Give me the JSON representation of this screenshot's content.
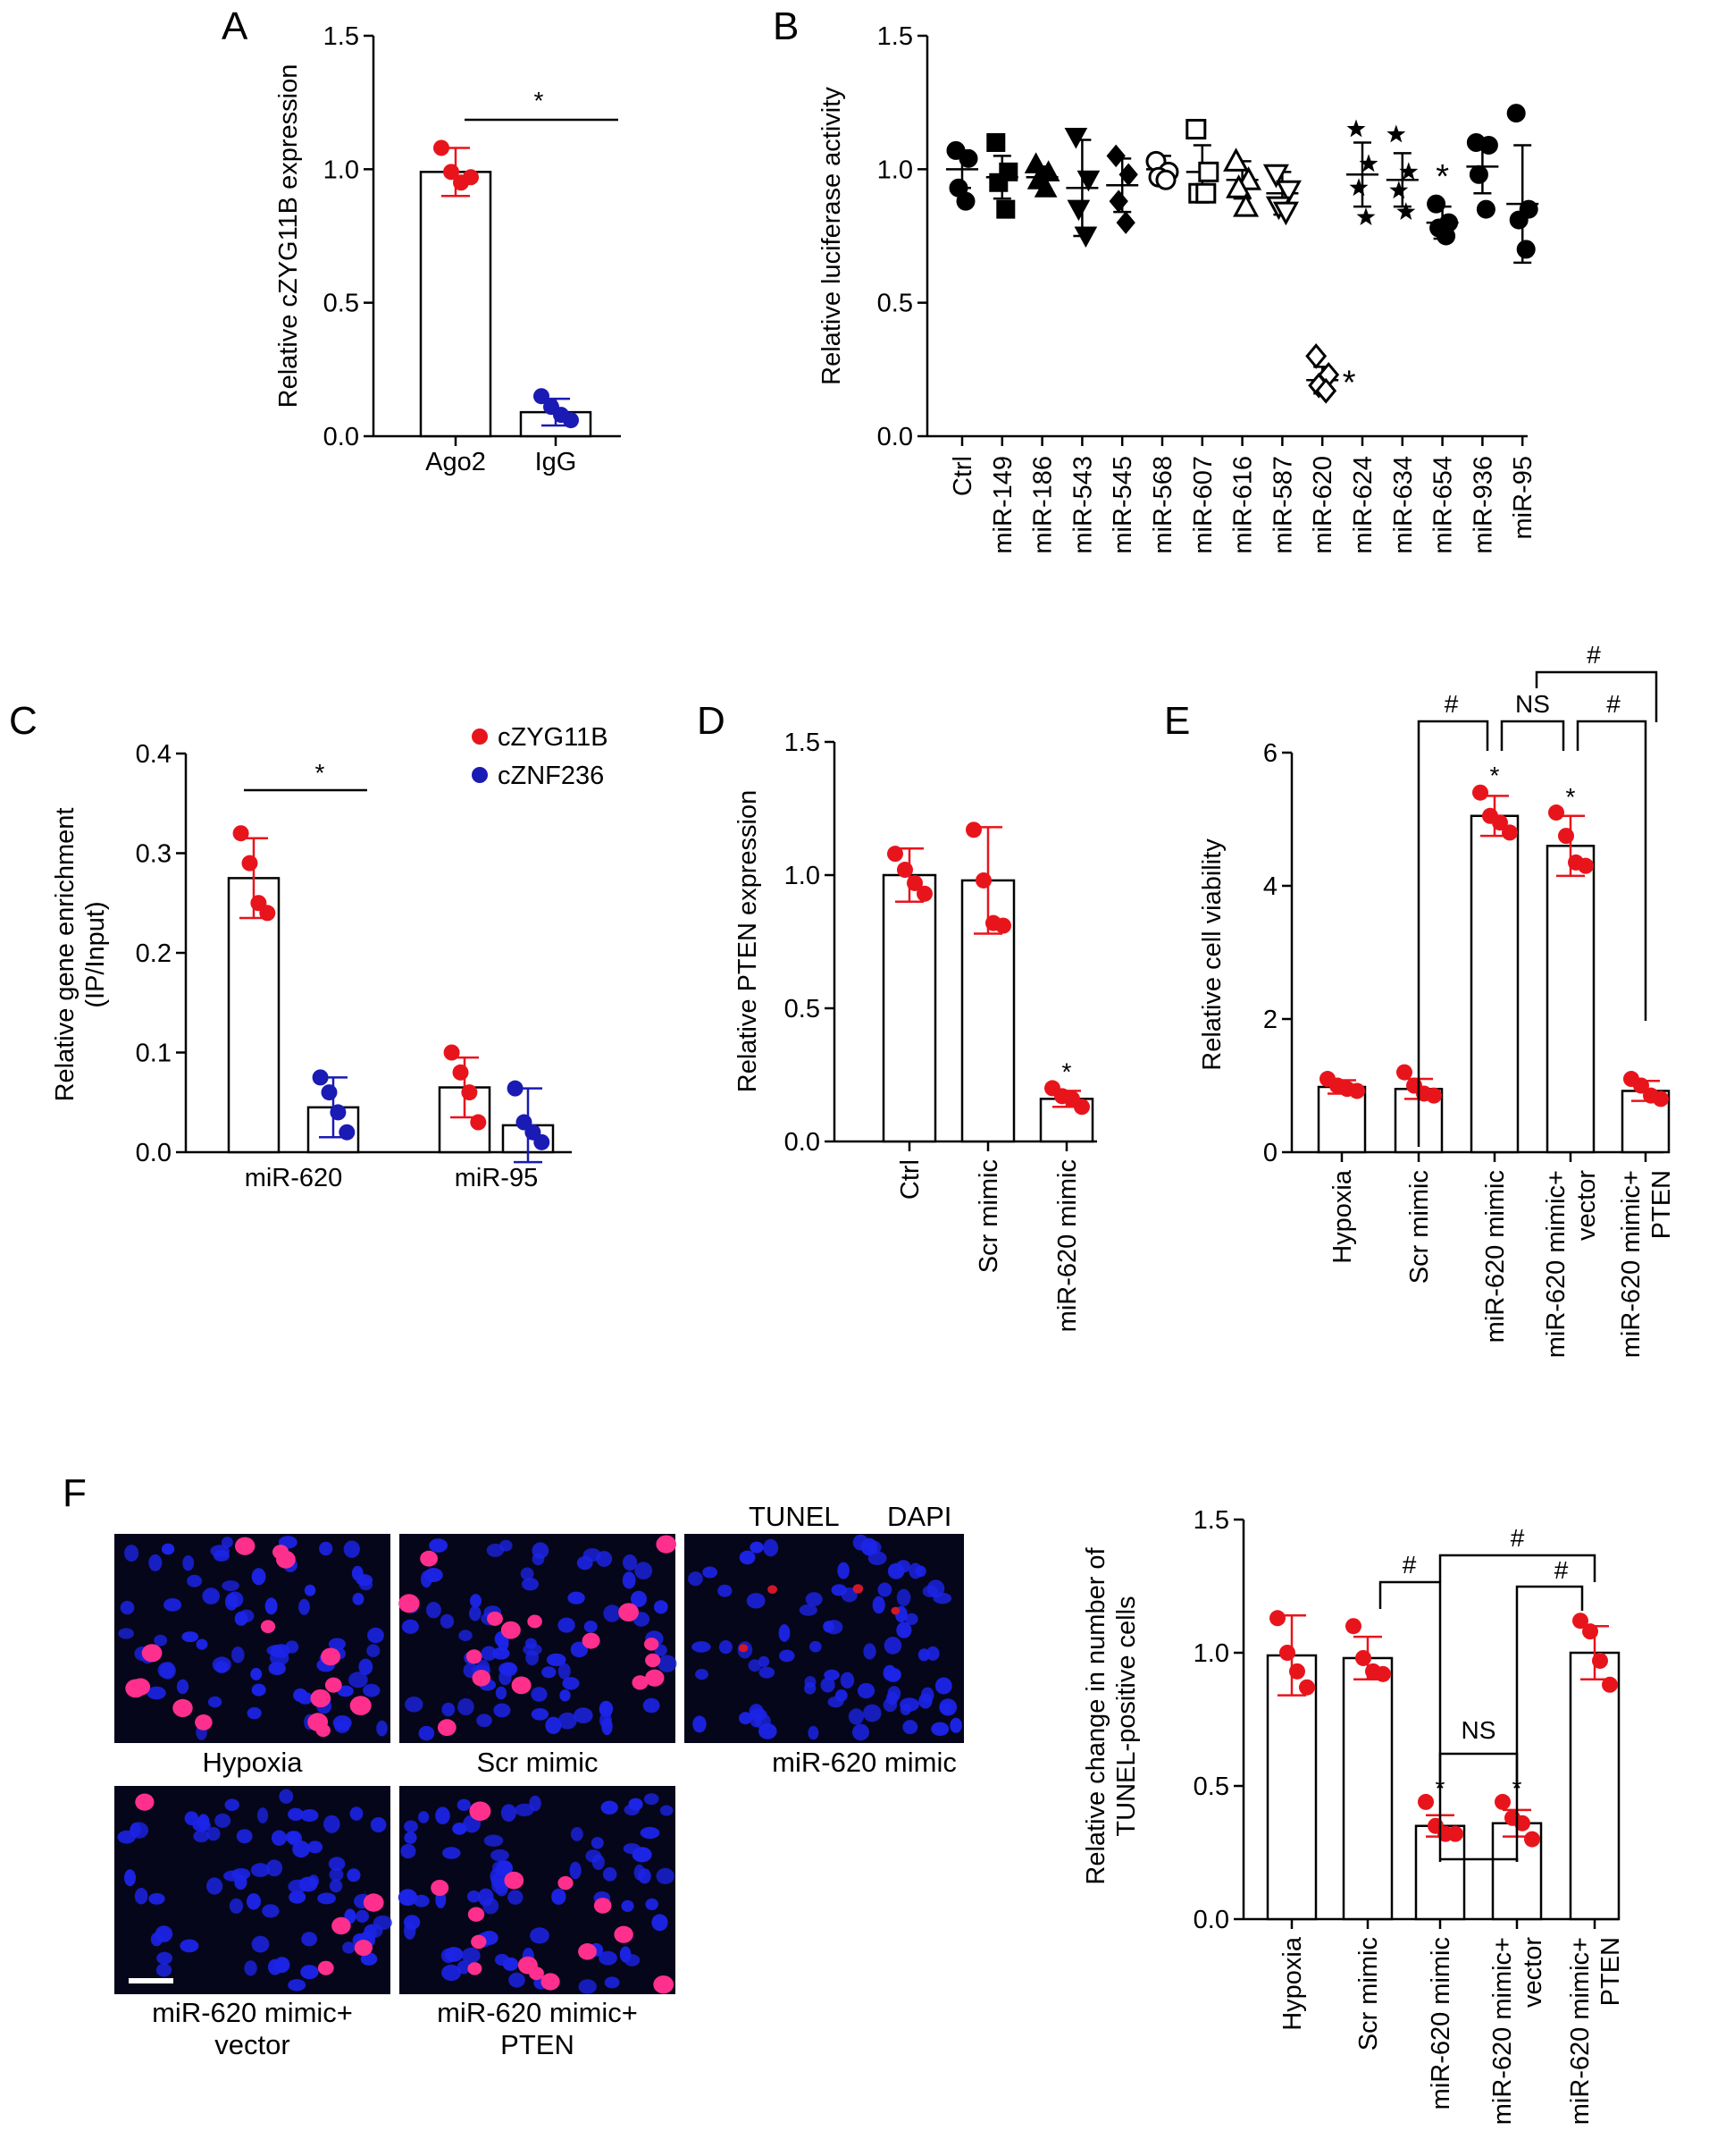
{
  "panel_labels": [
    "A",
    "B",
    "C",
    "D",
    "E",
    "F"
  ],
  "colors": {
    "red": "#e8141c",
    "blue": "#1a1ab4",
    "black": "#000000"
  },
  "chart_data": [
    {
      "id": "A",
      "type": "bar",
      "ylabel": "Relative cZYG11B expression",
      "ylim": [
        0,
        1.5
      ],
      "yticks": [
        "0.0",
        "0.5",
        "1.0",
        "1.5"
      ],
      "categories": [
        "Ago2",
        "IgG"
      ],
      "values": [
        0.99,
        0.09
      ],
      "errors": [
        0.09,
        0.05
      ],
      "point_colors": [
        "#e8141c",
        "#1a1ab4"
      ],
      "points": [
        [
          1.08,
          0.99,
          0.95,
          0.97
        ],
        [
          0.15,
          0.11,
          0.08,
          0.06
        ]
      ],
      "annotations": {
        "sig": "*"
      }
    },
    {
      "id": "B",
      "type": "scatter",
      "ylabel": "Relative luciferase activity",
      "ylim": [
        0,
        1.5
      ],
      "yticks": [
        "0.0",
        "0.5",
        "1.0",
        "1.5"
      ],
      "categories": [
        "Ctrl",
        "miR-149",
        "miR-186",
        "miR-543",
        "miR-545",
        "miR-568",
        "miR-607",
        "miR-616",
        "miR-587",
        "miR-620",
        "miR-624",
        "miR-634",
        "miR-654",
        "miR-936",
        "miR-95"
      ],
      "means": [
        1.0,
        0.97,
        0.97,
        0.93,
        0.94,
        1.0,
        0.99,
        0.96,
        0.91,
        0.21,
        0.98,
        0.96,
        0.8,
        1.01,
        0.87
      ],
      "errors": [
        0.07,
        0.08,
        0.04,
        0.18,
        0.1,
        0.05,
        0.1,
        0.07,
        0.08,
        0.05,
        0.12,
        0.1,
        0.06,
        0.1,
        0.22
      ],
      "markers": [
        "circle",
        "square",
        "triangle",
        "triangle-down",
        "diamond",
        "open-circle",
        "open-square",
        "open-triangle",
        "open-triangle-down",
        "open-diamond",
        "star",
        "star",
        "circle",
        "circle",
        "circle"
      ],
      "points": [
        [
          1.07,
          1.04,
          0.93,
          0.88
        ],
        [
          1.1,
          0.99,
          0.95,
          0.85
        ],
        [
          1.02,
          0.99,
          0.96,
          0.93
        ],
        [
          1.12,
          0.96,
          0.85,
          0.75
        ],
        [
          1.05,
          0.98,
          0.88,
          0.8
        ],
        [
          1.03,
          0.99,
          0.97,
          0.96
        ],
        [
          1.15,
          0.99,
          0.91,
          0.91
        ],
        [
          1.03,
          0.96,
          0.93,
          0.86
        ],
        [
          0.98,
          0.92,
          0.86,
          0.84
        ],
        [
          0.3,
          0.23,
          0.19,
          0.17
        ],
        [
          1.15,
          1.02,
          0.93,
          0.82
        ],
        [
          1.13,
          0.99,
          0.92,
          0.84
        ],
        [
          0.87,
          0.8,
          0.78,
          0.75
        ],
        [
          1.1,
          1.09,
          0.98,
          0.85
        ],
        [
          1.21,
          0.85,
          0.81,
          0.7
        ]
      ],
      "annotations": [
        {
          "category": "miR-620",
          "text": "*"
        },
        {
          "category": "miR-654",
          "text": "*"
        }
      ]
    },
    {
      "id": "C",
      "type": "bar",
      "ylabel": "Relative gene enrichment (IP/Input)",
      "ylabel_lines": [
        "Relative gene enrichment",
        "(IP/Input)"
      ],
      "ylim": [
        0,
        0.4
      ],
      "yticks": [
        "0.0",
        "0.1",
        "0.2",
        "0.3",
        "0.4"
      ],
      "categories": [
        "miR-620",
        "miR-95"
      ],
      "series": [
        {
          "name": "cZYG11B",
          "color": "#e8141c",
          "values": [
            0.275,
            0.065
          ],
          "errors": [
            0.04,
            0.03
          ],
          "points": [
            [
              0.32,
              0.29,
              0.25,
              0.24
            ],
            [
              0.1,
              0.08,
              0.06,
              0.03
            ]
          ]
        },
        {
          "name": "cZNF236",
          "color": "#1a1ab4",
          "values": [
            0.045,
            0.027
          ],
          "errors": [
            0.03,
            0.037
          ],
          "points": [
            [
              0.075,
              0.06,
              0.04,
              0.02
            ],
            [
              0.064,
              0.03,
              0.02,
              0.01
            ]
          ]
        }
      ],
      "legend": "top-right",
      "annotations": {
        "sig": "*"
      }
    },
    {
      "id": "D",
      "type": "bar",
      "ylabel": "Relative PTEN expression",
      "ylim": [
        0,
        1.5
      ],
      "yticks": [
        "0.0",
        "0.5",
        "1.0",
        "1.5"
      ],
      "categories": [
        "Ctrl",
        "Scr mimic",
        "miR-620 mimic"
      ],
      "values": [
        1.0,
        0.98,
        0.16
      ],
      "errors": [
        0.1,
        0.2,
        0.03
      ],
      "points": [
        [
          1.08,
          1.02,
          0.97,
          0.93
        ],
        [
          1.17,
          0.98,
          0.82,
          0.81
        ],
        [
          0.2,
          0.17,
          0.16,
          0.13
        ]
      ],
      "annotations": [
        {
          "category": "miR-620 mimic",
          "text": "*"
        }
      ]
    },
    {
      "id": "E",
      "type": "bar",
      "ylabel": "Relative cell viability",
      "ylim": [
        0,
        6
      ],
      "yticks": [
        "0",
        "2",
        "4",
        "6"
      ],
      "categories": [
        "Hypoxia",
        "Scr mimic",
        "miR-620 mimic",
        "miR-620 mimic+\nvector",
        "miR-620 mimic+\nPTEN"
      ],
      "values": [
        0.98,
        0.95,
        5.05,
        4.6,
        0.92
      ],
      "errors": [
        0.1,
        0.15,
        0.3,
        0.45,
        0.15
      ],
      "points": [
        [
          1.1,
          1.0,
          0.95,
          0.92
        ],
        [
          1.2,
          1.0,
          0.88,
          0.85
        ],
        [
          5.4,
          5.05,
          4.95,
          4.8
        ],
        [
          5.1,
          4.75,
          4.35,
          4.3
        ],
        [
          1.1,
          1.0,
          0.85,
          0.8
        ]
      ],
      "annotations": [
        {
          "category": "miR-620 mimic",
          "text": "*"
        },
        {
          "category": "miR-620 mimic+\nvector",
          "text": "*"
        },
        {
          "from": "Scr mimic",
          "to": "miR-620 mimic",
          "text": "#"
        },
        {
          "from": "miR-620 mimic",
          "to": "miR-620 mimic+\nvector",
          "text": "NS"
        },
        {
          "from": "miR-620 mimic+\nvector",
          "to": "miR-620 mimic+\nPTEN",
          "text": "#"
        },
        {
          "from": "miR-620 mimic / vector",
          "to": "miR-620 mimic+\nPTEN",
          "text": "#"
        }
      ]
    },
    {
      "id": "F",
      "type": "bar",
      "ylabel": "Relative change in number of TUNEL-positive cells",
      "ylabel_lines": [
        "Relative change in number of",
        "TUNEL-positive cells"
      ],
      "ylim": [
        0,
        1.5
      ],
      "yticks": [
        "0.0",
        "0.5",
        "1.0",
        "1.5"
      ],
      "categories": [
        "Hypoxia",
        "Scr mimic",
        "miR-620 mimic",
        "miR-620 mimic+\nvector",
        "miR-620 mimic+\nPTEN"
      ],
      "values": [
        0.99,
        0.98,
        0.35,
        0.36,
        1.0
      ],
      "errors": [
        0.15,
        0.08,
        0.04,
        0.05,
        0.1
      ],
      "points": [
        [
          1.13,
          1.0,
          0.93,
          0.87
        ],
        [
          1.1,
          0.98,
          0.93,
          0.92
        ],
        [
          0.44,
          0.35,
          0.32,
          0.32
        ],
        [
          0.44,
          0.38,
          0.36,
          0.3
        ],
        [
          1.12,
          1.08,
          0.97,
          0.88
        ]
      ],
      "annotations": [
        {
          "category": "miR-620 mimic",
          "text": "*"
        },
        {
          "category": "miR-620 mimic+\nvector",
          "text": "*"
        },
        {
          "from": "Scr mimic",
          "to": "miR-620 mimic",
          "text": "#"
        },
        {
          "from": "miR-620 mimic",
          "to": "miR-620 mimic+\nPTEN",
          "text": "#"
        },
        {
          "from": "miR-620 mimic+\nvector",
          "to": "miR-620 mimic+\nPTEN",
          "text": "#"
        },
        {
          "from": "miR-620 mimic",
          "to": "miR-620 mimic+\nvector",
          "text": "NS"
        }
      ]
    }
  ],
  "micrographs": {
    "legend": {
      "tunel": "TUNEL",
      "dapi": "DAPI",
      "tunel_color": "#f02030",
      "dapi_color": "#2020ff"
    },
    "images": [
      {
        "caption": "Hypoxia",
        "nuclei": 72,
        "positive": 15,
        "seed": 11
      },
      {
        "caption": "Scr mimic",
        "nuclei": 72,
        "positive": 16,
        "seed": 23
      },
      {
        "caption": "miR-620 mimic",
        "nuclei": 80,
        "positive": 4,
        "seed": 37
      },
      {
        "caption": "miR-620 mimic+\nvector",
        "nuclei": 66,
        "positive": 5,
        "seed": 41
      },
      {
        "caption": "miR-620 mimic+\nPTEN",
        "nuclei": 70,
        "positive": 14,
        "seed": 53
      }
    ]
  }
}
